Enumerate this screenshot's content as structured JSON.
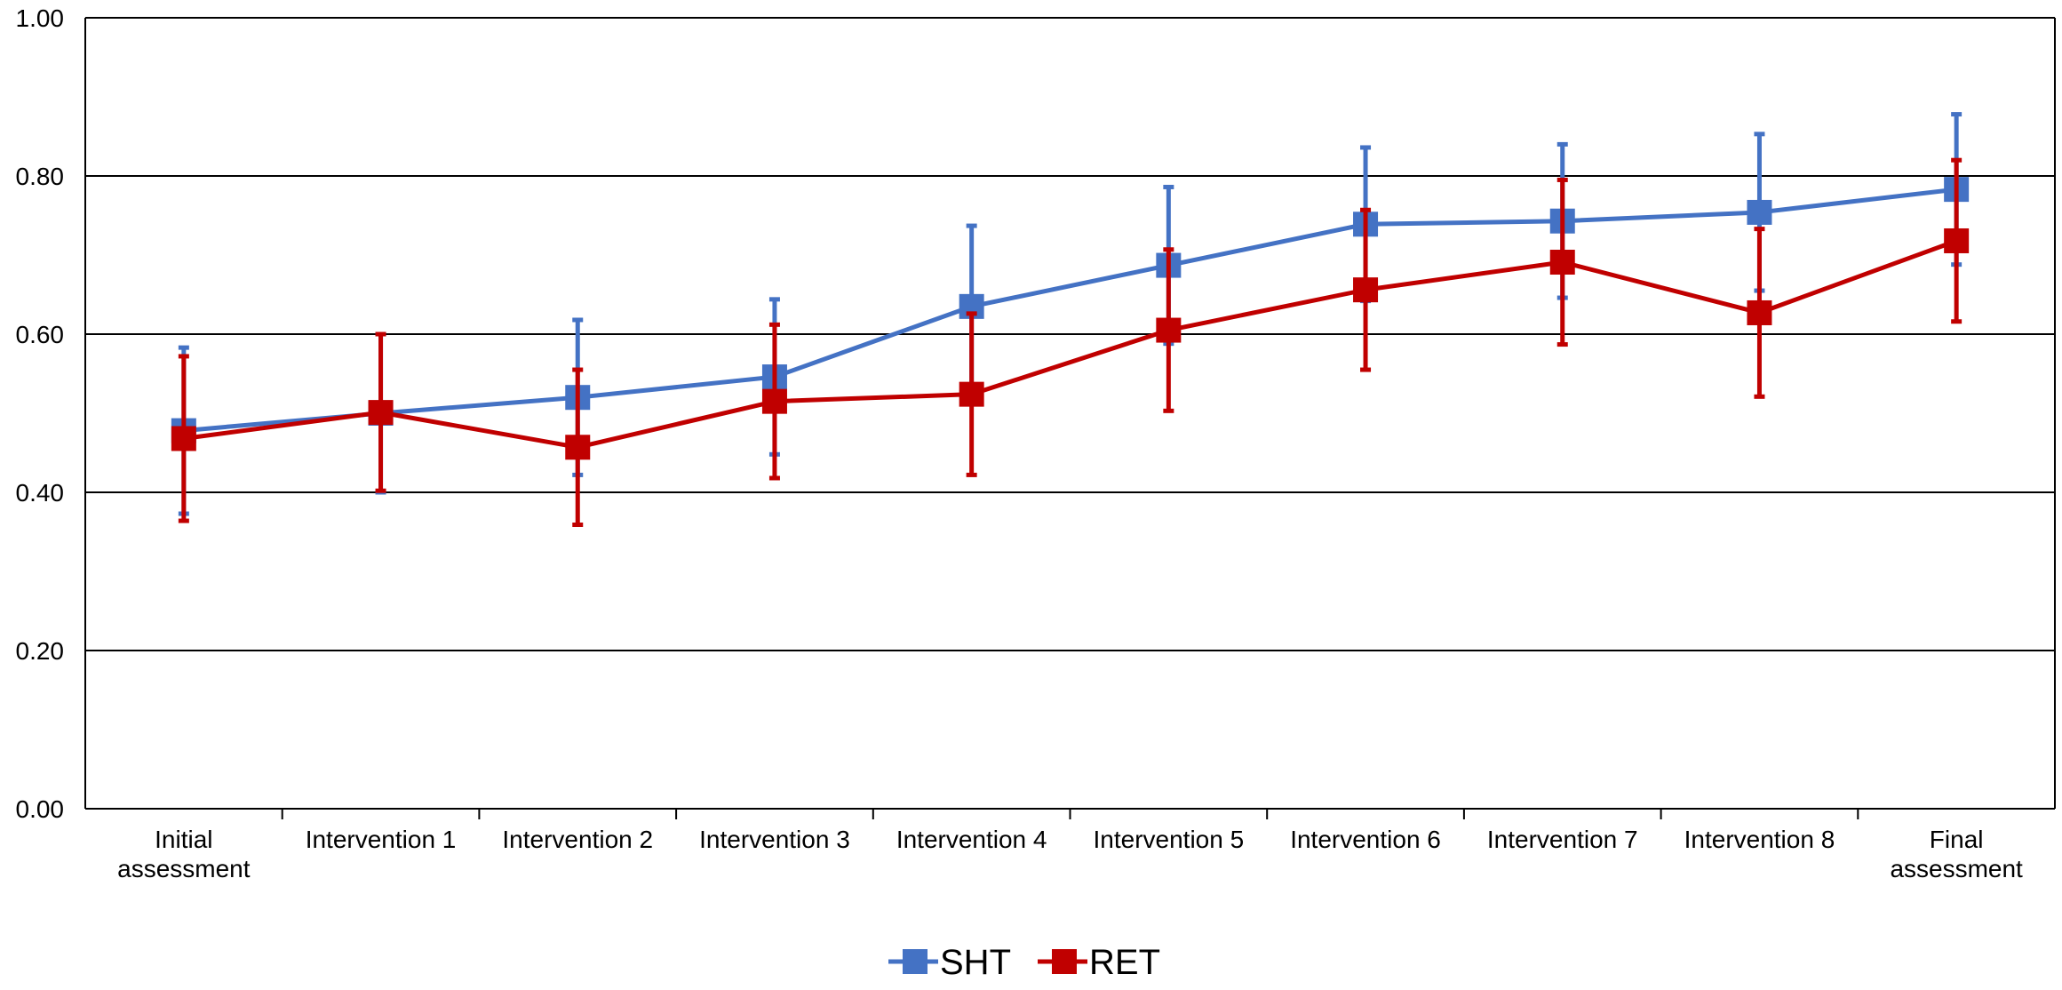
{
  "colors": {
    "SHT": "#4472c4",
    "RET": "#c00000",
    "gridline": "#000000",
    "axis": "#000000"
  },
  "chart_data": {
    "type": "line",
    "title": "",
    "xlabel": "",
    "ylabel": "",
    "ylim": [
      0,
      1
    ],
    "yticks": [
      "0.00",
      "0.20",
      "0.40",
      "0.60",
      "0.80",
      "1.00"
    ],
    "ytick_values": [
      0,
      0.2,
      0.4,
      0.6,
      0.8,
      1.0
    ],
    "grid": true,
    "legend_position": "bottom-center",
    "categories": [
      [
        "Initial",
        "assessment"
      ],
      [
        "Intervention 1"
      ],
      [
        "Intervention 2"
      ],
      [
        "Intervention 3"
      ],
      [
        "Intervention 4"
      ],
      [
        "Intervention 5"
      ],
      [
        "Intervention 6"
      ],
      [
        "Intervention 7"
      ],
      [
        "Intervention 8"
      ],
      [
        "Final",
        "assessment"
      ]
    ],
    "series": [
      {
        "name": "SHT",
        "color_key": "SHT",
        "values": [
          0.478,
          0.5,
          0.52,
          0.546,
          0.635,
          0.687,
          0.739,
          0.743,
          0.754,
          0.783
        ],
        "error": [
          0.105,
          0.1,
          0.098,
          0.098,
          0.102,
          0.099,
          0.097,
          0.097,
          0.099,
          0.095
        ]
      },
      {
        "name": "RET",
        "color_key": "RET",
        "values": [
          0.468,
          0.501,
          0.457,
          0.515,
          0.524,
          0.605,
          0.656,
          0.691,
          0.627,
          0.718
        ],
        "error": [
          0.104,
          0.099,
          0.098,
          0.097,
          0.102,
          0.102,
          0.101,
          0.104,
          0.106,
          0.102
        ]
      }
    ]
  }
}
